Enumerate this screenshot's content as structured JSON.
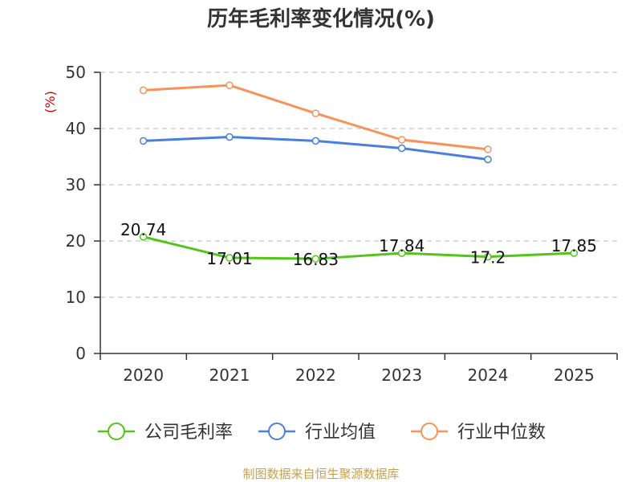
{
  "chart_data": {
    "type": "line",
    "title": "历年毛利率变化情况(%)",
    "ylabel": "(%)",
    "xlabel": "",
    "ylim": [
      0,
      50
    ],
    "yticks": [
      0,
      10,
      20,
      30,
      40,
      50
    ],
    "grid": true,
    "categories": [
      "2020",
      "2021",
      "2022",
      "2023",
      "2024",
      "2025"
    ],
    "series": [
      {
        "name": "公司毛利率",
        "color": "#52c41a",
        "values": [
          20.74,
          17.01,
          16.83,
          17.84,
          17.2,
          17.85
        ],
        "labels": [
          "20.74",
          "17.01",
          "16.83",
          "17.84",
          "17.2",
          "17.85"
        ]
      },
      {
        "name": "行业均值",
        "color": "#4a7fdb",
        "values": [
          37.8,
          38.5,
          37.8,
          36.5,
          34.5,
          null
        ]
      },
      {
        "name": "行业中位数",
        "color": "#f5935a",
        "values": [
          46.8,
          47.7,
          42.7,
          38.0,
          36.3,
          null
        ]
      }
    ],
    "legend_position": "bottom"
  },
  "source_text": "制图数据来自恒生聚源数据库"
}
